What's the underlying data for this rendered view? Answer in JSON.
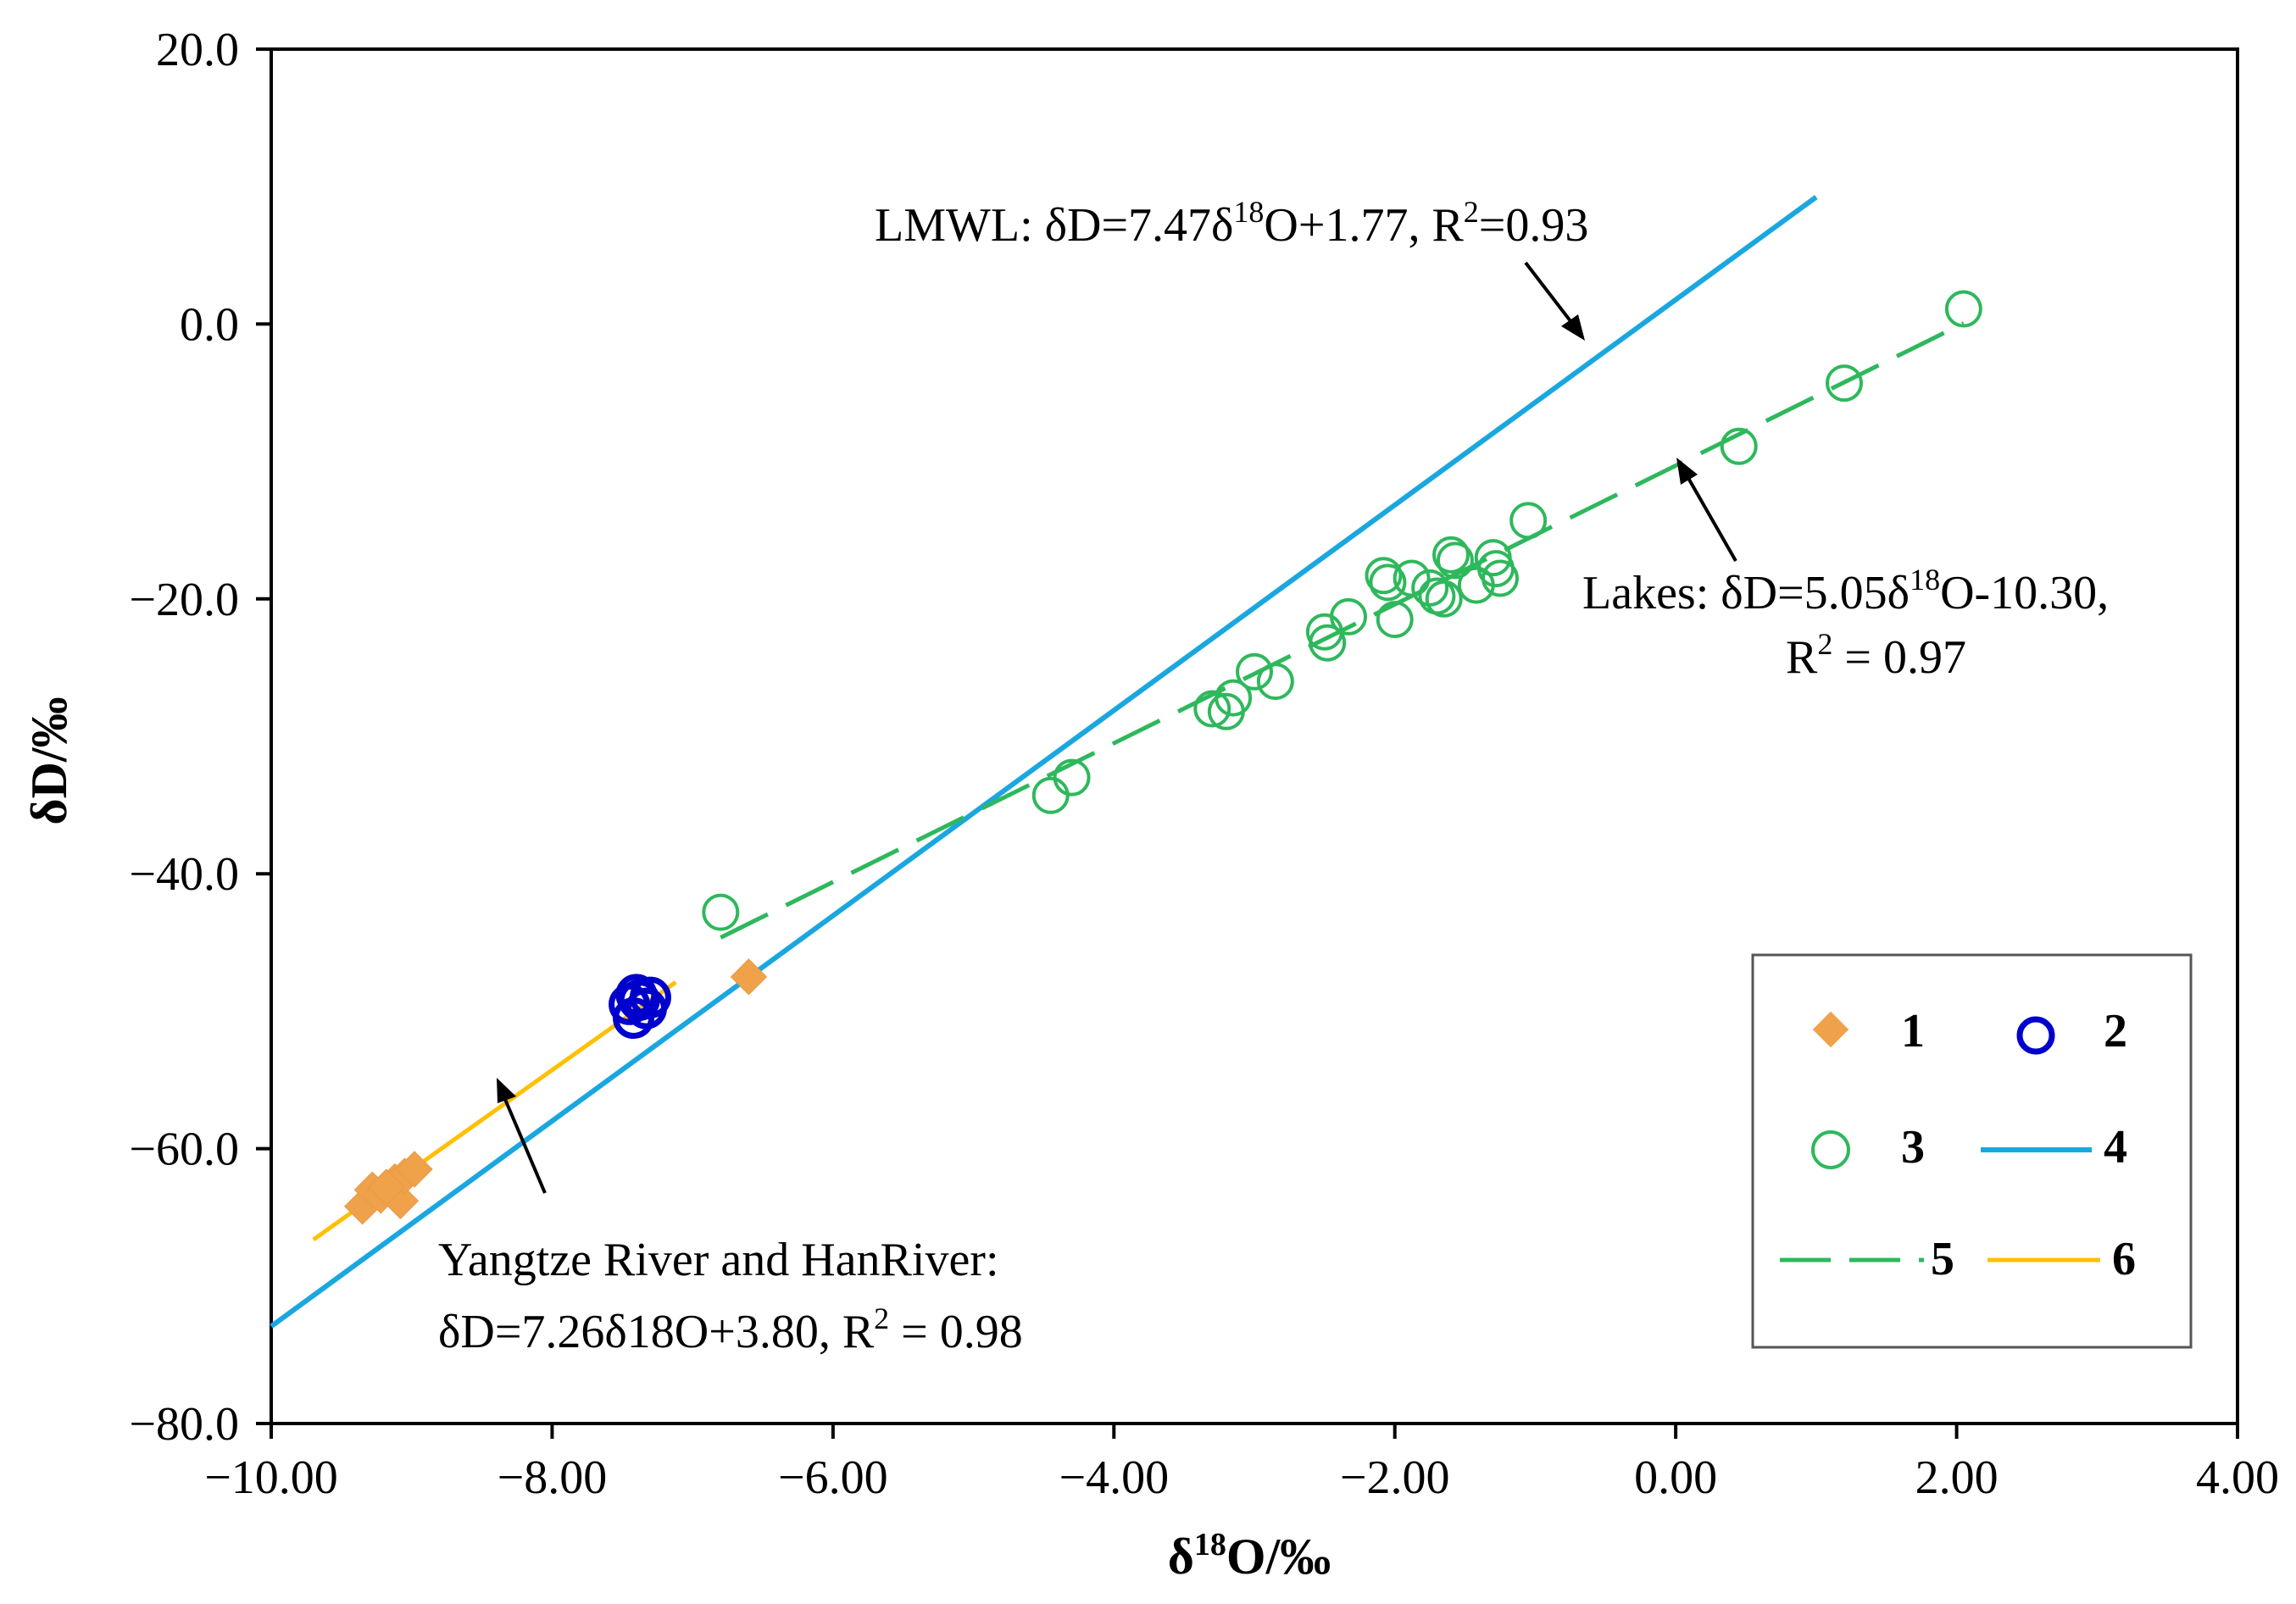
{
  "chart_data": {
    "type": "scatter",
    "xlabel": "δ18O/‰",
    "ylabel": "δD/‰",
    "xlim": [
      -10.0,
      4.0
    ],
    "ylim": [
      -80.0,
      20.0
    ],
    "x_ticks": [
      -10,
      -8,
      -6,
      -4,
      -2,
      0,
      2,
      4
    ],
    "x_tick_labels": [
      "−10.00",
      "−8.00",
      "−6.00",
      "−4.00",
      "−2.00",
      "0.00",
      "2.00",
      "4.00"
    ],
    "y_ticks": [
      20,
      0,
      -20,
      -40,
      -60,
      -80
    ],
    "y_tick_labels": [
      "20.0",
      "0.0",
      "−20.0",
      "−40.0",
      "−60.0",
      "−80.0"
    ],
    "series": [
      {
        "name": "1",
        "kind": "points",
        "marker": "diamond",
        "color": "#F0A24A",
        "points": [
          [
            -9.35,
            -64.2
          ],
          [
            -9.28,
            -63.0
          ],
          [
            -9.22,
            -63.4
          ],
          [
            -9.12,
            -62.4
          ],
          [
            -9.08,
            -63.8
          ],
          [
            -9.05,
            -62.0
          ],
          [
            -8.98,
            -61.5
          ],
          [
            -9.18,
            -62.8
          ],
          [
            -6.6,
            -47.5
          ]
        ]
      },
      {
        "name": "2",
        "kind": "points",
        "marker": "open-circle",
        "color": "#0000CC",
        "points": [
          [
            -7.45,
            -49.5
          ],
          [
            -7.42,
            -50.5
          ],
          [
            -7.38,
            -49.2
          ],
          [
            -7.33,
            -49.8
          ],
          [
            -7.3,
            -49.0
          ],
          [
            -7.4,
            -48.8
          ]
        ]
      },
      {
        "name": "3",
        "kind": "points",
        "marker": "open-circle",
        "color": "#2EB85C",
        "points": [
          [
            -6.8,
            -42.8
          ],
          [
            -4.45,
            -34.3
          ],
          [
            -4.3,
            -33.0
          ],
          [
            -3.3,
            -28.0
          ],
          [
            -3.2,
            -28.2
          ],
          [
            -3.15,
            -27.2
          ],
          [
            -3.0,
            -25.3
          ],
          [
            -2.85,
            -26.0
          ],
          [
            -2.5,
            -22.4
          ],
          [
            -2.48,
            -23.2
          ],
          [
            -2.33,
            -21.3
          ],
          [
            -2.08,
            -18.3
          ],
          [
            -2.05,
            -18.8
          ],
          [
            -2.0,
            -21.5
          ],
          [
            -1.88,
            -18.5
          ],
          [
            -1.75,
            -19.2
          ],
          [
            -1.7,
            -19.8
          ],
          [
            -1.65,
            -20.0
          ],
          [
            -1.6,
            -16.8
          ],
          [
            -1.57,
            -17.2
          ],
          [
            -1.42,
            -19.0
          ],
          [
            -1.3,
            -17.0
          ],
          [
            -1.25,
            -18.5
          ],
          [
            -1.28,
            -17.8
          ],
          [
            -1.05,
            -14.3
          ],
          [
            0.45,
            -8.9
          ],
          [
            1.2,
            -4.3
          ],
          [
            2.05,
            1.1
          ]
        ]
      },
      {
        "name": "4",
        "kind": "line",
        "style": "solid",
        "color": "#1AA7E0",
        "equation": "LMWL: δD=7.47δ18O+1.77, R2=0.93",
        "x_range": [
          -10.0,
          1.0
        ],
        "slope": 7.47,
        "intercept": 1.77
      },
      {
        "name": "5",
        "kind": "line",
        "style": "dashed",
        "color": "#2EB85C",
        "equation": "Lakes: δD=5.05δ18O-10.30, R2 = 0.97",
        "x_range": [
          -6.8,
          2.05
        ],
        "slope": 5.05,
        "intercept": -10.3
      },
      {
        "name": "6",
        "kind": "line",
        "style": "solid",
        "color": "#FFC000",
        "equation": "Yangtze River and HanRiver: δD=7.26δ18O+3.80, R2 = 0.98",
        "x_range": [
          -9.7,
          -7.12
        ],
        "slope": 7.26,
        "intercept": 3.8
      }
    ],
    "annotations": {
      "lmwl": {
        "pre": "LMWL: δD=7.47δ",
        "sup": "18",
        "mid": "O+1.77, R",
        "sup2": "2",
        "post": "=0.93"
      },
      "lakes": {
        "line1_pre": "Lakes: δD=5.05δ",
        "line1_sup": "18",
        "line1_post": "O-10.30,",
        "line2_pre": "R",
        "line2_sup": "2",
        "line2_post": " = 0.97"
      },
      "rivers": {
        "line1": "Yangtze River and HanRiver:",
        "line2_pre": "δD=7.26δ18O+3.80, R",
        "line2_sup": "2",
        "line2_post": " = 0.98"
      }
    },
    "legend": {
      "position": "bottom-right",
      "entries": [
        "1",
        "2",
        "3",
        "4",
        "5",
        "6"
      ]
    }
  }
}
